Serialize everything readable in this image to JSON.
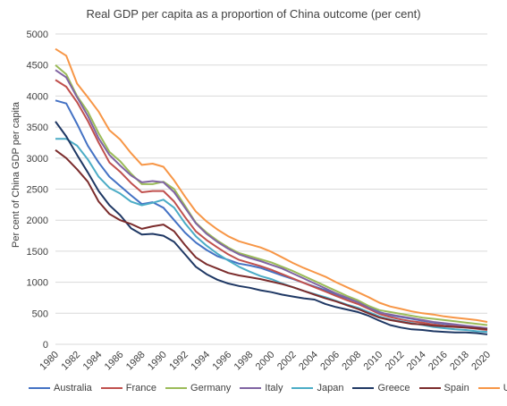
{
  "chart_data": {
    "type": "line",
    "title": "Real GDP per capita as a proportion  of China  outcome  (per cent)",
    "ylabel": "Per cent of China GDP per capita",
    "xlabel": "",
    "ylim": [
      0,
      5000
    ],
    "yticks": [
      0,
      500,
      1000,
      1500,
      2000,
      2500,
      3000,
      3500,
      4000,
      4500,
      5000
    ],
    "grid": "horizontal",
    "legend_position": "bottom",
    "x": [
      1980,
      1981,
      1982,
      1983,
      1984,
      1985,
      1986,
      1987,
      1988,
      1989,
      1990,
      1991,
      1992,
      1993,
      1994,
      1995,
      1996,
      1997,
      1998,
      1999,
      2000,
      2001,
      2002,
      2003,
      2004,
      2005,
      2006,
      2007,
      2008,
      2009,
      2010,
      2011,
      2012,
      2013,
      2014,
      2015,
      2016,
      2017,
      2018,
      2019,
      2020
    ],
    "xtick_labels": [
      "1980",
      "1982",
      "1984",
      "1986",
      "1988",
      "1990",
      "1992",
      "1994",
      "1996",
      "1998",
      "2000",
      "2002",
      "2004",
      "2006",
      "2008",
      "2010",
      "2012",
      "2014",
      "2016",
      "2018",
      "2020"
    ],
    "series": [
      {
        "name": "Australia",
        "color": "#4472C4",
        "values": [
          3930,
          3880,
          3550,
          3200,
          2930,
          2700,
          2550,
          2400,
          2260,
          2290,
          2200,
          2000,
          1800,
          1640,
          1520,
          1420,
          1360,
          1300,
          1270,
          1230,
          1170,
          1110,
          1050,
          990,
          930,
          870,
          800,
          740,
          680,
          600,
          520,
          470,
          440,
          410,
          380,
          350,
          330,
          310,
          290,
          270,
          250
        ]
      },
      {
        "name": "France",
        "color": "#C0504D",
        "values": [
          4260,
          4150,
          3900,
          3600,
          3250,
          2930,
          2780,
          2600,
          2450,
          2470,
          2470,
          2300,
          2050,
          1820,
          1680,
          1560,
          1450,
          1360,
          1310,
          1260,
          1200,
          1130,
          1060,
          990,
          920,
          850,
          780,
          710,
          650,
          570,
          490,
          440,
          400,
          370,
          350,
          320,
          300,
          290,
          270,
          250,
          230
        ]
      },
      {
        "name": "Germany",
        "color": "#9BBB59",
        "values": [
          4500,
          4350,
          4000,
          3750,
          3400,
          3100,
          2950,
          2750,
          2580,
          2580,
          2620,
          2500,
          2230,
          1960,
          1800,
          1670,
          1560,
          1470,
          1420,
          1370,
          1320,
          1250,
          1180,
          1100,
          1020,
          940,
          860,
          780,
          710,
          620,
          550,
          520,
          490,
          460,
          430,
          410,
          390,
          370,
          350,
          330,
          310
        ]
      },
      {
        "name": "Italy",
        "color": "#8064A2",
        "values": [
          4420,
          4300,
          3980,
          3680,
          3320,
          3050,
          2880,
          2720,
          2610,
          2630,
          2610,
          2450,
          2200,
          1950,
          1780,
          1650,
          1540,
          1450,
          1390,
          1340,
          1280,
          1220,
          1140,
          1060,
          980,
          900,
          820,
          750,
          680,
          590,
          510,
          480,
          450,
          420,
          390,
          360,
          340,
          320,
          300,
          280,
          260
        ]
      },
      {
        "name": "Japan",
        "color": "#4BACC6",
        "values": [
          3310,
          3310,
          3200,
          2980,
          2700,
          2520,
          2430,
          2300,
          2240,
          2280,
          2330,
          2200,
          1950,
          1740,
          1590,
          1460,
          1350,
          1250,
          1170,
          1100,
          1050,
          980,
          920,
          860,
          810,
          760,
          700,
          640,
          590,
          520,
          450,
          400,
          370,
          340,
          310,
          280,
          260,
          240,
          230,
          210,
          200
        ]
      },
      {
        "name": "Greece",
        "color": "#1F3864",
        "values": [
          3590,
          3350,
          3050,
          2770,
          2470,
          2240,
          2080,
          1870,
          1770,
          1780,
          1750,
          1650,
          1450,
          1250,
          1130,
          1040,
          980,
          940,
          910,
          870,
          840,
          800,
          770,
          740,
          720,
          650,
          600,
          560,
          520,
          460,
          380,
          310,
          270,
          240,
          230,
          210,
          200,
          190,
          190,
          180,
          160
        ]
      },
      {
        "name": "Spain",
        "color": "#7B2C2C",
        "values": [
          3130,
          3000,
          2820,
          2620,
          2300,
          2100,
          2000,
          1940,
          1860,
          1900,
          1930,
          1820,
          1600,
          1400,
          1290,
          1220,
          1150,
          1110,
          1080,
          1050,
          1010,
          970,
          920,
          860,
          800,
          740,
          690,
          630,
          570,
          500,
          430,
          390,
          360,
          330,
          320,
          300,
          290,
          280,
          270,
          260,
          240
        ]
      },
      {
        "name": "USA",
        "color": "#F79646",
        "values": [
          4760,
          4650,
          4200,
          3980,
          3750,
          3450,
          3300,
          3080,
          2890,
          2910,
          2860,
          2640,
          2380,
          2140,
          1980,
          1850,
          1740,
          1660,
          1610,
          1560,
          1490,
          1400,
          1310,
          1230,
          1160,
          1090,
          1000,
          920,
          840,
          760,
          670,
          610,
          570,
          530,
          500,
          480,
          450,
          430,
          410,
          390,
          360
        ]
      }
    ]
  }
}
